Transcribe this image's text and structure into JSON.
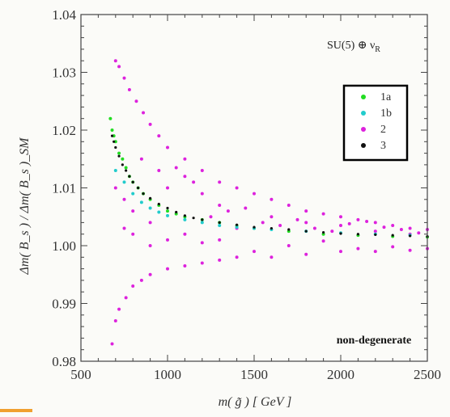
{
  "chart_data": {
    "type": "scatter",
    "xlabel": "m( g̃ )  [ GeV ]",
    "ylabel": "Δm( B_s ) / Δm( B_s )_SM",
    "xlim": [
      500,
      2500
    ],
    "ylim": [
      0.98,
      1.04
    ],
    "x_ticks": [
      "500",
      "1000",
      "1500",
      "2000",
      "2500"
    ],
    "y_ticks": [
      "0.98",
      "0.99",
      "1.00",
      "1.01",
      "1.02",
      "1.03",
      "1.04"
    ],
    "annotation_top": "SU(5) ⊕ ν_R",
    "annotation_bottom": "non-degenerate",
    "legend_position": "upper-right",
    "series": [
      {
        "name": "1a",
        "color": "#22dd22",
        "points": [
          [
            670,
            1.022
          ],
          [
            680,
            1.02
          ],
          [
            690,
            1.019
          ],
          [
            700,
            1.018
          ],
          [
            720,
            1.016
          ],
          [
            740,
            1.015
          ],
          [
            760,
            1.0135
          ],
          [
            780,
            1.012
          ],
          [
            800,
            1.011
          ],
          [
            830,
            1.01
          ],
          [
            860,
            1.009
          ],
          [
            900,
            1.008
          ],
          [
            950,
            1.007
          ],
          [
            1000,
            1.006
          ],
          [
            1050,
            1.0055
          ],
          [
            1100,
            1.005
          ],
          [
            1200,
            1.0045
          ],
          [
            1300,
            1.004
          ],
          [
            1400,
            1.0035
          ],
          [
            1500,
            1.003
          ],
          [
            1700,
            1.0025
          ],
          [
            1900,
            1.002
          ],
          [
            2100,
            1.0018
          ],
          [
            2300,
            1.0016
          ],
          [
            2500,
            1.0015
          ]
        ]
      },
      {
        "name": "1b",
        "color": "#22cccc",
        "points": [
          [
            700,
            1.013
          ],
          [
            750,
            1.011
          ],
          [
            800,
            1.009
          ],
          [
            850,
            1.0075
          ],
          [
            900,
            1.0065
          ],
          [
            950,
            1.0058
          ],
          [
            1000,
            1.0052
          ],
          [
            1100,
            1.0045
          ],
          [
            1200,
            1.004
          ],
          [
            1300,
            1.0035
          ],
          [
            1400,
            1.0032
          ],
          [
            1500,
            1.003
          ],
          [
            1600,
            1.0028
          ],
          [
            1800,
            1.0025
          ],
          [
            2000,
            1.0022
          ],
          [
            2200,
            1.002
          ],
          [
            2400,
            1.0018
          ]
        ]
      },
      {
        "name": "2",
        "color": "#dd22dd",
        "points": [
          [
            700,
            1.032
          ],
          [
            720,
            1.031
          ],
          [
            750,
            1.029
          ],
          [
            780,
            1.027
          ],
          [
            820,
            1.025
          ],
          [
            860,
            1.023
          ],
          [
            900,
            1.021
          ],
          [
            950,
            1.019
          ],
          [
            1000,
            1.017
          ],
          [
            1100,
            1.015
          ],
          [
            1200,
            1.013
          ],
          [
            1300,
            1.011
          ],
          [
            1400,
            1.01
          ],
          [
            1500,
            1.009
          ],
          [
            1600,
            1.008
          ],
          [
            1700,
            1.007
          ],
          [
            1800,
            1.006
          ],
          [
            1900,
            1.0055
          ],
          [
            2000,
            1.005
          ],
          [
            2100,
            1.0045
          ],
          [
            2200,
            1.004
          ],
          [
            2300,
            1.0035
          ],
          [
            2400,
            1.003
          ],
          [
            2500,
            1.0028
          ],
          [
            680,
            0.983
          ],
          [
            700,
            0.987
          ],
          [
            720,
            0.989
          ],
          [
            760,
            0.991
          ],
          [
            800,
            0.993
          ],
          [
            850,
            0.994
          ],
          [
            900,
            0.995
          ],
          [
            1000,
            0.996
          ],
          [
            1100,
            0.9965
          ],
          [
            1200,
            0.997
          ],
          [
            1300,
            0.9975
          ],
          [
            1400,
            0.998
          ],
          [
            1600,
            0.998
          ],
          [
            1800,
            0.9985
          ],
          [
            2000,
            0.999
          ],
          [
            2200,
            0.999
          ],
          [
            2400,
            0.9992
          ],
          [
            1000,
            1.01
          ],
          [
            1100,
            1.012
          ],
          [
            1200,
            1.009
          ],
          [
            1300,
            1.007
          ],
          [
            900,
            1.0
          ],
          [
            1000,
            1.001
          ],
          [
            1200,
            1.0005
          ],
          [
            1400,
            1.003
          ],
          [
            1600,
            1.005
          ],
          [
            1800,
            1.004
          ],
          [
            2000,
            1.0035
          ],
          [
            2200,
            1.0025
          ],
          [
            2400,
            1.002
          ],
          [
            750,
            1.003
          ],
          [
            800,
            1.006
          ],
          [
            850,
            1.015
          ],
          [
            950,
            1.013
          ],
          [
            1050,
            1.0135
          ],
          [
            1150,
            1.011
          ],
          [
            1250,
            1.005
          ],
          [
            1350,
            1.006
          ],
          [
            1450,
            1.0065
          ],
          [
            1550,
            1.004
          ],
          [
            1650,
            1.0035
          ],
          [
            1750,
            1.0045
          ],
          [
            1850,
            1.003
          ],
          [
            1950,
            1.0025
          ],
          [
            2050,
            1.0038
          ],
          [
            2150,
            1.0042
          ],
          [
            2250,
            1.0032
          ],
          [
            2350,
            1.0028
          ],
          [
            2450,
            1.0022
          ],
          [
            700,
            1.01
          ],
          [
            750,
            1.008
          ],
          [
            800,
            1.002
          ],
          [
            900,
            1.004
          ],
          [
            1100,
            1.002
          ],
          [
            1300,
            1.001
          ],
          [
            1500,
            0.999
          ],
          [
            1700,
            1.0
          ],
          [
            1900,
            1.0008
          ],
          [
            2100,
            0.9995
          ],
          [
            2300,
            0.9998
          ],
          [
            2500,
            0.9995
          ]
        ]
      },
      {
        "name": "3",
        "color": "#111111",
        "points": [
          [
            680,
            1.019
          ],
          [
            690,
            1.018
          ],
          [
            700,
            1.017
          ],
          [
            720,
            1.0155
          ],
          [
            740,
            1.014
          ],
          [
            760,
            1.013
          ],
          [
            780,
            1.012
          ],
          [
            800,
            1.011
          ],
          [
            830,
            1.01
          ],
          [
            860,
            1.009
          ],
          [
            900,
            1.0082
          ],
          [
            950,
            1.0072
          ],
          [
            1000,
            1.0065
          ],
          [
            1050,
            1.0058
          ],
          [
            1100,
            1.0052
          ],
          [
            1150,
            1.0048
          ],
          [
            1200,
            1.0045
          ],
          [
            1300,
            1.004
          ],
          [
            1400,
            1.0036
          ],
          [
            1500,
            1.0032
          ],
          [
            1600,
            1.003
          ],
          [
            1700,
            1.0028
          ],
          [
            1800,
            1.0025
          ],
          [
            1900,
            1.0023
          ],
          [
            2000,
            1.0021
          ],
          [
            2100,
            1.002
          ],
          [
            2200,
            1.0019
          ],
          [
            2300,
            1.0018
          ],
          [
            2400,
            1.0017
          ],
          [
            2500,
            1.0016
          ]
        ]
      }
    ]
  }
}
